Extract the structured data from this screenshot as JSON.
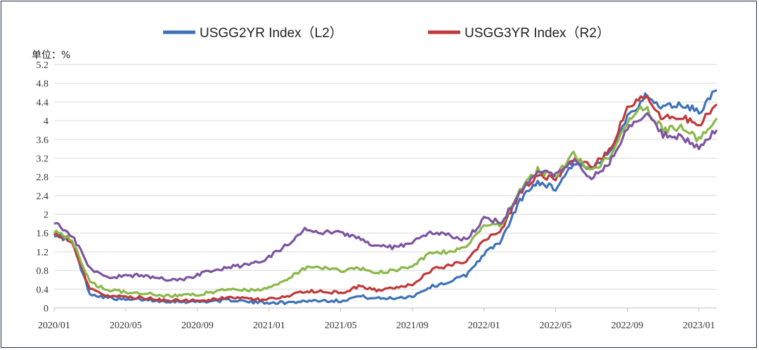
{
  "chart_data": {
    "type": "line",
    "unit_label": "单位：%",
    "y_ticks": [
      "0",
      "0.4",
      "0.8",
      "1.2",
      "1.6",
      "2",
      "2.4",
      "2.8",
      "3.2",
      "3.6",
      "4",
      "4.4",
      "4.8",
      "5.2"
    ],
    "x_ticks": [
      "2020/01",
      "2020/05",
      "2020/09",
      "2021/01",
      "2021/05",
      "2021/09",
      "2022/01",
      "2022/05",
      "2022/09",
      "2023/01"
    ],
    "ylim": [
      0,
      5.2
    ],
    "grid": "horizontal",
    "legend_position": "top",
    "series": [
      {
        "name": "USGG2YR Index（L2）",
        "color": "#3e72b8",
        "points": [
          [
            "2020/01",
            1.58
          ],
          [
            "2020/02",
            1.4
          ],
          [
            "2020/03",
            0.3
          ],
          [
            "2020/04",
            0.22
          ],
          [
            "2020/05",
            0.17
          ],
          [
            "2020/06",
            0.18
          ],
          [
            "2020/07",
            0.15
          ],
          [
            "2020/08",
            0.14
          ],
          [
            "2020/09",
            0.13
          ],
          [
            "2020/10",
            0.15
          ],
          [
            "2020/11",
            0.17
          ],
          [
            "2020/12",
            0.12
          ],
          [
            "2021/01",
            0.12
          ],
          [
            "2021/02",
            0.11
          ],
          [
            "2021/03",
            0.15
          ],
          [
            "2021/04",
            0.16
          ],
          [
            "2021/05",
            0.15
          ],
          [
            "2021/06",
            0.25
          ],
          [
            "2021/07",
            0.2
          ],
          [
            "2021/08",
            0.21
          ],
          [
            "2021/09",
            0.25
          ],
          [
            "2021/10",
            0.45
          ],
          [
            "2021/11",
            0.55
          ],
          [
            "2021/12",
            0.7
          ],
          [
            "2022/01",
            1.15
          ],
          [
            "2022/02",
            1.45
          ],
          [
            "2022/03",
            2.3
          ],
          [
            "2022/04",
            2.7
          ],
          [
            "2022/05",
            2.55
          ],
          [
            "2022/06",
            3.1
          ],
          [
            "2022/07",
            2.95
          ],
          [
            "2022/08",
            3.3
          ],
          [
            "2022/09",
            4.1
          ],
          [
            "2022/10",
            4.5
          ],
          [
            "2022/11",
            4.3
          ],
          [
            "2022/12",
            4.35
          ],
          [
            "2023/01",
            4.2
          ],
          [
            "2023/02",
            4.65
          ]
        ]
      },
      {
        "name": "USGG3YR Index（R2）",
        "color": "#c0393b",
        "points": [
          [
            "2020/01",
            1.6
          ],
          [
            "2020/02",
            1.4
          ],
          [
            "2020/03",
            0.4
          ],
          [
            "2020/04",
            0.27
          ],
          [
            "2020/05",
            0.22
          ],
          [
            "2020/06",
            0.22
          ],
          [
            "2020/07",
            0.17
          ],
          [
            "2020/08",
            0.15
          ],
          [
            "2020/09",
            0.16
          ],
          [
            "2020/10",
            0.19
          ],
          [
            "2020/11",
            0.22
          ],
          [
            "2020/12",
            0.18
          ],
          [
            "2021/01",
            0.18
          ],
          [
            "2021/02",
            0.25
          ],
          [
            "2021/03",
            0.35
          ],
          [
            "2021/04",
            0.35
          ],
          [
            "2021/05",
            0.32
          ],
          [
            "2021/06",
            0.45
          ],
          [
            "2021/07",
            0.38
          ],
          [
            "2021/08",
            0.42
          ],
          [
            "2021/09",
            0.5
          ],
          [
            "2021/10",
            0.8
          ],
          [
            "2021/11",
            0.9
          ],
          [
            "2021/12",
            1.0
          ],
          [
            "2022/01",
            1.45
          ],
          [
            "2022/02",
            1.7
          ],
          [
            "2022/03",
            2.45
          ],
          [
            "2022/04",
            2.85
          ],
          [
            "2022/05",
            2.75
          ],
          [
            "2022/06",
            3.2
          ],
          [
            "2022/07",
            3.0
          ],
          [
            "2022/08",
            3.35
          ],
          [
            "2022/09",
            4.25
          ],
          [
            "2022/10",
            4.55
          ],
          [
            "2022/11",
            4.05
          ],
          [
            "2022/12",
            4.1
          ],
          [
            "2023/01",
            3.9
          ],
          [
            "2023/02",
            4.35
          ]
        ]
      },
      {
        "name": "",
        "color": "#8ab84a",
        "points": [
          [
            "2020/01",
            1.65
          ],
          [
            "2020/02",
            1.45
          ],
          [
            "2020/03",
            0.55
          ],
          [
            "2020/04",
            0.38
          ],
          [
            "2020/05",
            0.34
          ],
          [
            "2020/06",
            0.32
          ],
          [
            "2020/07",
            0.26
          ],
          [
            "2020/08",
            0.27
          ],
          [
            "2020/09",
            0.28
          ],
          [
            "2020/10",
            0.35
          ],
          [
            "2020/11",
            0.4
          ],
          [
            "2020/12",
            0.38
          ],
          [
            "2021/01",
            0.42
          ],
          [
            "2021/02",
            0.6
          ],
          [
            "2021/03",
            0.85
          ],
          [
            "2021/04",
            0.85
          ],
          [
            "2021/05",
            0.8
          ],
          [
            "2021/06",
            0.85
          ],
          [
            "2021/07",
            0.75
          ],
          [
            "2021/08",
            0.8
          ],
          [
            "2021/09",
            0.9
          ],
          [
            "2021/10",
            1.15
          ],
          [
            "2021/11",
            1.2
          ],
          [
            "2021/12",
            1.3
          ],
          [
            "2022/01",
            1.75
          ],
          [
            "2022/02",
            1.8
          ],
          [
            "2022/03",
            2.5
          ],
          [
            "2022/04",
            2.95
          ],
          [
            "2022/05",
            2.8
          ],
          [
            "2022/06",
            3.3
          ],
          [
            "2022/07",
            2.9
          ],
          [
            "2022/08",
            3.25
          ],
          [
            "2022/09",
            4.0
          ],
          [
            "2022/10",
            4.3
          ],
          [
            "2022/11",
            3.8
          ],
          [
            "2022/12",
            3.85
          ],
          [
            "2023/01",
            3.6
          ],
          [
            "2023/02",
            4.05
          ]
        ]
      },
      {
        "name": "",
        "color": "#7d55a0",
        "points": [
          [
            "2020/01",
            1.85
          ],
          [
            "2020/02",
            1.55
          ],
          [
            "2020/03",
            0.85
          ],
          [
            "2020/04",
            0.65
          ],
          [
            "2020/05",
            0.68
          ],
          [
            "2020/06",
            0.7
          ],
          [
            "2020/07",
            0.62
          ],
          [
            "2020/08",
            0.6
          ],
          [
            "2020/09",
            0.7
          ],
          [
            "2020/10",
            0.82
          ],
          [
            "2020/11",
            0.88
          ],
          [
            "2020/12",
            0.93
          ],
          [
            "2021/01",
            1.08
          ],
          [
            "2021/02",
            1.35
          ],
          [
            "2021/03",
            1.68
          ],
          [
            "2021/04",
            1.62
          ],
          [
            "2021/05",
            1.6
          ],
          [
            "2021/06",
            1.48
          ],
          [
            "2021/07",
            1.3
          ],
          [
            "2021/08",
            1.3
          ],
          [
            "2021/09",
            1.4
          ],
          [
            "2021/10",
            1.6
          ],
          [
            "2021/11",
            1.55
          ],
          [
            "2021/12",
            1.45
          ],
          [
            "2022/01",
            1.9
          ],
          [
            "2022/02",
            1.85
          ],
          [
            "2022/03",
            2.45
          ],
          [
            "2022/04",
            2.9
          ],
          [
            "2022/05",
            2.85
          ],
          [
            "2022/06",
            3.15
          ],
          [
            "2022/07",
            2.75
          ],
          [
            "2022/08",
            3.1
          ],
          [
            "2022/09",
            3.85
          ],
          [
            "2022/10",
            4.15
          ],
          [
            "2022/11",
            3.7
          ],
          [
            "2022/12",
            3.65
          ],
          [
            "2023/01",
            3.45
          ],
          [
            "2023/02",
            3.8
          ]
        ]
      }
    ]
  }
}
